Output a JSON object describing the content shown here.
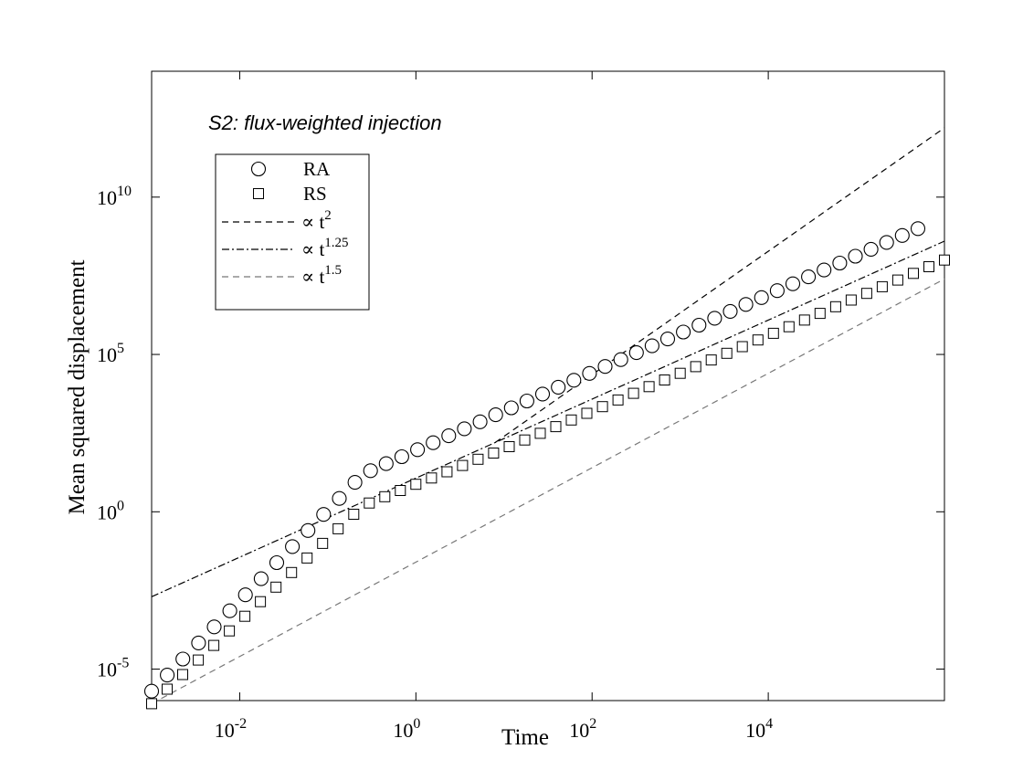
{
  "chart_data": {
    "type": "scatter",
    "title": "",
    "annotation": "S2: flux-weighted injection",
    "xlabel": "Time",
    "ylabel": "Mean squared displacement",
    "xscale": "log",
    "yscale": "log",
    "xlim": [
      0.001,
      1000000
    ],
    "ylim": [
      1e-06,
      100000000000000
    ],
    "grid": false,
    "legend_position": "top-left",
    "x_ticks": [
      {
        "value": 0.01,
        "base": "10",
        "exp": "-2"
      },
      {
        "value": 1,
        "base": "10",
        "exp": "0"
      },
      {
        "value": 100,
        "base": "10",
        "exp": "2"
      },
      {
        "value": 10000,
        "base": "10",
        "exp": "4"
      }
    ],
    "y_ticks": [
      {
        "value": 1e-05,
        "base": "10",
        "exp": "-5"
      },
      {
        "value": 1,
        "base": "10",
        "exp": "0"
      },
      {
        "value": 100000,
        "base": "10",
        "exp": "5"
      },
      {
        "value": 10000000000,
        "base": "10",
        "exp": "10"
      }
    ],
    "series": [
      {
        "name": "RA",
        "kind": "markers",
        "marker": "circle",
        "color": "#000000",
        "x_start": 0.001,
        "x_end": 500000,
        "count": 50,
        "points_log": [
          [
            -3.0,
            -5.7
          ],
          [
            -0.6,
            1.2
          ],
          [
            1.0,
            3.2
          ],
          [
            5.7,
            9.0
          ]
        ]
      },
      {
        "name": "RS",
        "kind": "markers",
        "marker": "square",
        "color": "#000000",
        "x_start": 0.001,
        "x_end": 1000000,
        "count": 52,
        "points_log": [
          [
            -3.0,
            -6.1
          ],
          [
            -0.6,
            0.2
          ],
          [
            1.0,
            2.0
          ],
          [
            6.0,
            8.0
          ]
        ]
      },
      {
        "name": "∝ t",
        "sup": "2",
        "kind": "line",
        "dash": "7,5",
        "color": "#000000",
        "points_log": [
          [
            0.9,
            2.2
          ],
          [
            6.0,
            12.2
          ]
        ]
      },
      {
        "name": "∝ t",
        "sup": "1.25",
        "kind": "line",
        "dash": "8,3,2,3",
        "color": "#000000",
        "points_log": [
          [
            -3.0,
            -2.7
          ],
          [
            0.9,
            2.2
          ],
          [
            6.0,
            8.6
          ]
        ]
      },
      {
        "name": "∝ t",
        "sup": "1.5",
        "kind": "line",
        "dash": "7,5",
        "color": "#777777",
        "points_log": [
          [
            -3.0,
            -6.1
          ],
          [
            6.0,
            7.4
          ]
        ]
      }
    ]
  }
}
